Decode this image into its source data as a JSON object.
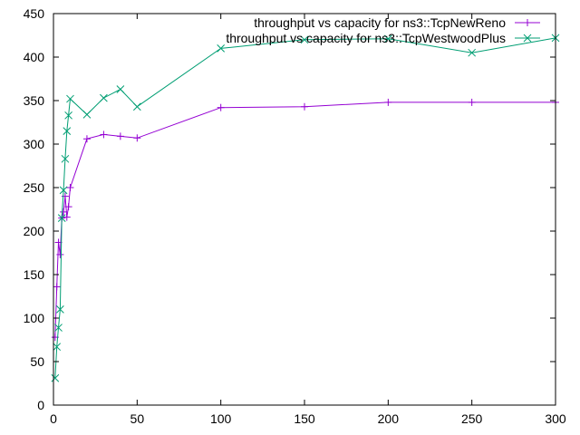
{
  "chart_data": {
    "type": "line",
    "title": "",
    "xlabel": "",
    "ylabel": "",
    "xlim": [
      0,
      300
    ],
    "ylim": [
      0,
      450
    ],
    "xticks": [
      0,
      50,
      100,
      150,
      200,
      250,
      300
    ],
    "yticks": [
      0,
      50,
      100,
      150,
      200,
      250,
      300,
      350,
      400,
      450
    ],
    "grid": false,
    "legend_position": "top-right",
    "series": [
      {
        "name": "throughput vs capacity for ns3::TcpNewReno",
        "color": "#9400d3",
        "marker": "plus",
        "x": [
          1,
          2,
          3,
          4,
          5,
          6,
          7,
          8,
          9,
          10,
          20,
          30,
          40,
          50,
          100,
          150,
          200,
          250,
          300
        ],
        "y": [
          78,
          136,
          187,
          173,
          215,
          222,
          240,
          216,
          228,
          250,
          306,
          311,
          309,
          307,
          342,
          343,
          348,
          348,
          348
        ]
      },
      {
        "name": "throughput vs capacity for ns3::TcpWestwoodPlus",
        "color": "#009e73",
        "marker": "cross",
        "x": [
          1,
          2,
          3,
          4,
          5,
          6,
          7,
          8,
          9,
          10,
          20,
          30,
          40,
          50,
          100,
          150,
          200,
          250,
          300
        ],
        "y": [
          31,
          67,
          89,
          110,
          215,
          247,
          283,
          315,
          333,
          352,
          334,
          353,
          363,
          343,
          410,
          420,
          421,
          405,
          422
        ]
      }
    ]
  }
}
